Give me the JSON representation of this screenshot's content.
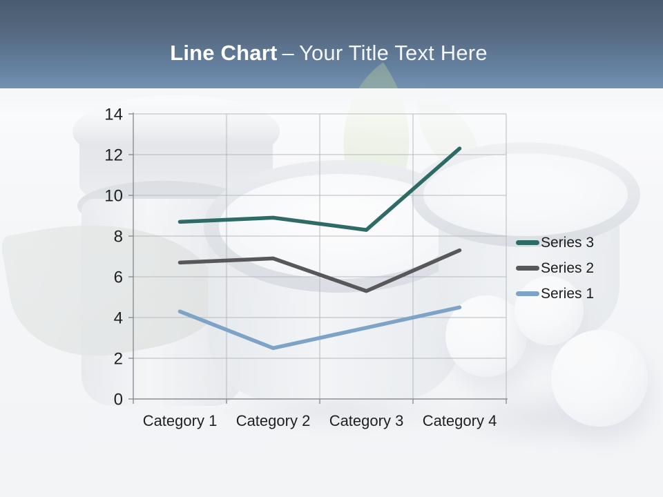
{
  "title": {
    "bold": "Line Chart",
    "dash": "–",
    "regular": "Your Title Text Here"
  },
  "chart_data": {
    "type": "line",
    "subtype": "stacked-line",
    "title": "",
    "categories": [
      "Category 1",
      "Category 2",
      "Category 3",
      "Category 4"
    ],
    "series": [
      {
        "name": "Series 1",
        "color": "#7da3c8",
        "values": [
          4.3,
          2.5,
          3.5,
          4.5
        ]
      },
      {
        "name": "Series 2",
        "color": "#58575a",
        "values": [
          6.7,
          6.9,
          5.3,
          7.3
        ]
      },
      {
        "name": "Series 3",
        "color": "#2e6b66",
        "values": [
          8.7,
          8.9,
          8.3,
          12.3
        ]
      }
    ],
    "xlabel": "",
    "ylabel": "",
    "ylim": [
      0,
      14
    ],
    "yticks": [
      0,
      2,
      4,
      6,
      8,
      10,
      12,
      14
    ],
    "grid": true,
    "legend_position": "right",
    "legend_order": [
      "Series 3",
      "Series 2",
      "Series 1"
    ]
  },
  "colors": {
    "header_top": "#495b6f",
    "header_bottom": "#7492b2",
    "title_text": "#ffffff",
    "axis": "#8a8e94",
    "gridline": "#b7babd",
    "tick_label": "#1f1f1f",
    "series1": "#7da3c8",
    "series2": "#58575a",
    "series3": "#2e6b66"
  }
}
